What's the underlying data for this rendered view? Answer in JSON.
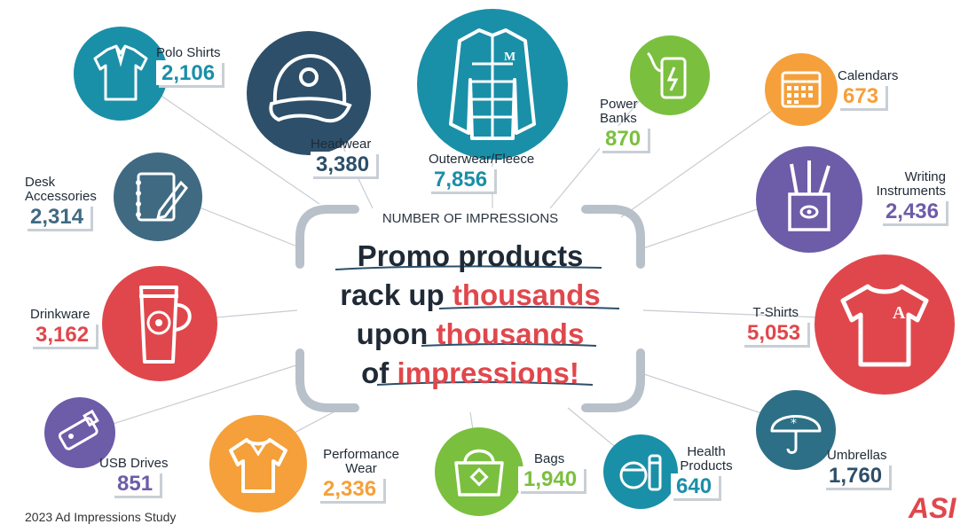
{
  "heading": "NUMBER OF IMPRESSIONS",
  "headline": {
    "l1": "Promo products",
    "l2a": "rack up ",
    "l2b": "thousands",
    "l3a": "upon ",
    "l3b": "thousands",
    "l4a": "of ",
    "l4b": "impressions!"
  },
  "footer": "2023 Ad Impressions Study",
  "logo_text": "ASI",
  "colors": {
    "red": "#e0474c",
    "teal": "#1a8fa8",
    "navy": "#2d4f6a",
    "green": "#7bbf3f",
    "orange": "#f5a03a",
    "purple": "#6d5ca8",
    "slate": "#3f6a82",
    "gray": "#b8c1ca"
  },
  "items": [
    {
      "name": "Polo Shirts",
      "value": "2,106",
      "icon": "polo-shirt-icon"
    },
    {
      "name": "Headwear",
      "value": "3,380",
      "icon": "cap-icon"
    },
    {
      "name": "Outerwear/Fleece",
      "value": "7,856",
      "icon": "jacket-icon"
    },
    {
      "name": "Power Banks",
      "value": "870",
      "icon": "power-bank-icon"
    },
    {
      "name": "Calendars",
      "value": "673",
      "icon": "calendar-icon"
    },
    {
      "name": "Desk Accessories",
      "value": "2,314",
      "icon": "notebook-icon"
    },
    {
      "name": "Writing Instruments",
      "value": "2,436",
      "icon": "pen-cup-icon"
    },
    {
      "name": "Drinkware",
      "value": "3,162",
      "icon": "travel-mug-icon"
    },
    {
      "name": "T-Shirts",
      "value": "5,053",
      "icon": "tshirt-icon"
    },
    {
      "name": "USB Drives",
      "value": "851",
      "icon": "usb-drive-icon"
    },
    {
      "name": "Performance Wear",
      "value": "2,336",
      "icon": "performance-shirt-icon"
    },
    {
      "name": "Bags",
      "value": "1,940",
      "icon": "tote-bag-icon"
    },
    {
      "name": "Health Products",
      "value": "640",
      "icon": "health-products-icon"
    },
    {
      "name": "Umbrellas",
      "value": "1,760",
      "icon": "umbrella-icon"
    }
  ]
}
